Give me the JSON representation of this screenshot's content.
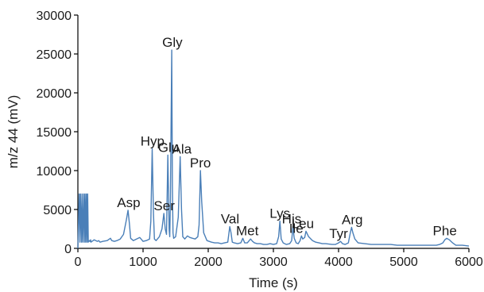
{
  "chart_data": {
    "type": "line",
    "title": "",
    "xlabel": "Time (s)",
    "ylabel": "m/z 44 (mV)",
    "xlim": [
      0,
      6000
    ],
    "ylim": [
      0,
      30000
    ],
    "xticks": [
      0,
      1000,
      2000,
      3000,
      4000,
      5000,
      6000
    ],
    "yticks": [
      0,
      5000,
      10000,
      15000,
      20000,
      25000,
      30000
    ],
    "grid": false,
    "colors": {
      "line": "#4a7fb8",
      "axis": "#000000",
      "text": "#1a1a1a"
    },
    "series": [
      {
        "x": [
          0,
          20,
          30,
          40,
          55,
          65,
          75,
          90,
          100,
          110,
          120,
          130,
          140,
          150,
          160,
          175,
          185,
          195,
          200,
          250,
          300,
          320,
          340,
          380,
          450,
          500,
          520,
          560,
          600,
          650,
          700,
          740,
          770,
          790,
          810,
          850,
          900,
          950,
          1000,
          1050,
          1100,
          1120,
          1140,
          1160,
          1175,
          1200,
          1250,
          1290,
          1320,
          1340,
          1360,
          1380,
          1400,
          1410,
          1420,
          1440,
          1450,
          1460,
          1470,
          1500,
          1540,
          1570,
          1590,
          1610,
          1640,
          1680,
          1720,
          1760,
          1800,
          1840,
          1860,
          1880,
          1900,
          1930,
          1980,
          2050,
          2100,
          2150,
          2200,
          2250,
          2300,
          2330,
          2350,
          2370,
          2400,
          2450,
          2500,
          2530,
          2560,
          2600,
          2650,
          2680,
          2710,
          2750,
          2800,
          2850,
          2900,
          2950,
          3000,
          3050,
          3080,
          3100,
          3120,
          3150,
          3200,
          3250,
          3280,
          3300,
          3320,
          3350,
          3380,
          3410,
          3430,
          3450,
          3480,
          3500,
          3540,
          3600,
          3650,
          3700,
          3750,
          3800,
          3900,
          3950,
          4000,
          4030,
          4060,
          4100,
          4150,
          4180,
          4200,
          4220,
          4250,
          4300,
          4400,
          4500,
          4600,
          4700,
          4800,
          4900,
          5000,
          5100,
          5200,
          5300,
          5400,
          5500,
          5550,
          5600,
          5630,
          5660,
          5700,
          5750,
          5800,
          5900,
          6000
        ],
        "y": [
          0,
          7000,
          800,
          7000,
          800,
          7000,
          800,
          7000,
          800,
          7000,
          800,
          7000,
          800,
          7000,
          800,
          1000,
          900,
          1100,
          800,
          1100,
          900,
          1000,
          800,
          900,
          1000,
          1300,
          1000,
          900,
          1000,
          1200,
          1800,
          3500,
          4900,
          3200,
          1300,
          1000,
          1200,
          1400,
          900,
          1000,
          1200,
          3500,
          12800,
          4500,
          1200,
          1000,
          1500,
          2500,
          4500,
          2500,
          1800,
          12000,
          2500,
          1500,
          6000,
          25500,
          8000,
          2000,
          1300,
          1500,
          4000,
          11800,
          5000,
          1500,
          1200,
          1600,
          1400,
          1300,
          1200,
          1500,
          3000,
          10000,
          6000,
          2000,
          1000,
          800,
          700,
          700,
          600,
          700,
          800,
          2800,
          2000,
          800,
          700,
          600,
          700,
          1300,
          700,
          700,
          1200,
          900,
          700,
          600,
          600,
          500,
          500,
          600,
          500,
          600,
          1500,
          3500,
          1200,
          700,
          500,
          600,
          1000,
          2800,
          1300,
          700,
          600,
          1000,
          1600,
          1200,
          1400,
          2200,
          1500,
          1000,
          800,
          700,
          600,
          600,
          500,
          500,
          700,
          900,
          600,
          500,
          700,
          2000,
          2700,
          2000,
          1200,
          700,
          600,
          500,
          500,
          500,
          500,
          400,
          400,
          400,
          400,
          400,
          400,
          400,
          500,
          700,
          1100,
          1300,
          1100,
          700,
          400,
          400,
          300
        ]
      }
    ],
    "peaks": [
      {
        "label": "Asp",
        "x": 780,
        "y": 4900
      },
      {
        "label": "Hyp",
        "x": 1145,
        "y": 12800
      },
      {
        "label": "Ser",
        "x": 1325,
        "y": 4500
      },
      {
        "label": "Glu",
        "x": 1390,
        "y": 12000
      },
      {
        "label": "Gly",
        "x": 1450,
        "y": 25500
      },
      {
        "label": "Ala",
        "x": 1595,
        "y": 11800
      },
      {
        "label": "Pro",
        "x": 1880,
        "y": 10000
      },
      {
        "label": "Val",
        "x": 2335,
        "y": 2800
      },
      {
        "label": "Met",
        "x": 2600,
        "y": 1300
      },
      {
        "label": "Lys",
        "x": 3100,
        "y": 3500
      },
      {
        "label": "His",
        "x": 3280,
        "y": 2800
      },
      {
        "label": "Ile",
        "x": 3350,
        "y": 1600
      },
      {
        "label": "Leu",
        "x": 3450,
        "y": 2200
      },
      {
        "label": "Tyr",
        "x": 4000,
        "y": 900
      },
      {
        "label": "Arg",
        "x": 4210,
        "y": 2700
      },
      {
        "label": "Phe",
        "x": 5630,
        "y": 1300
      }
    ]
  }
}
